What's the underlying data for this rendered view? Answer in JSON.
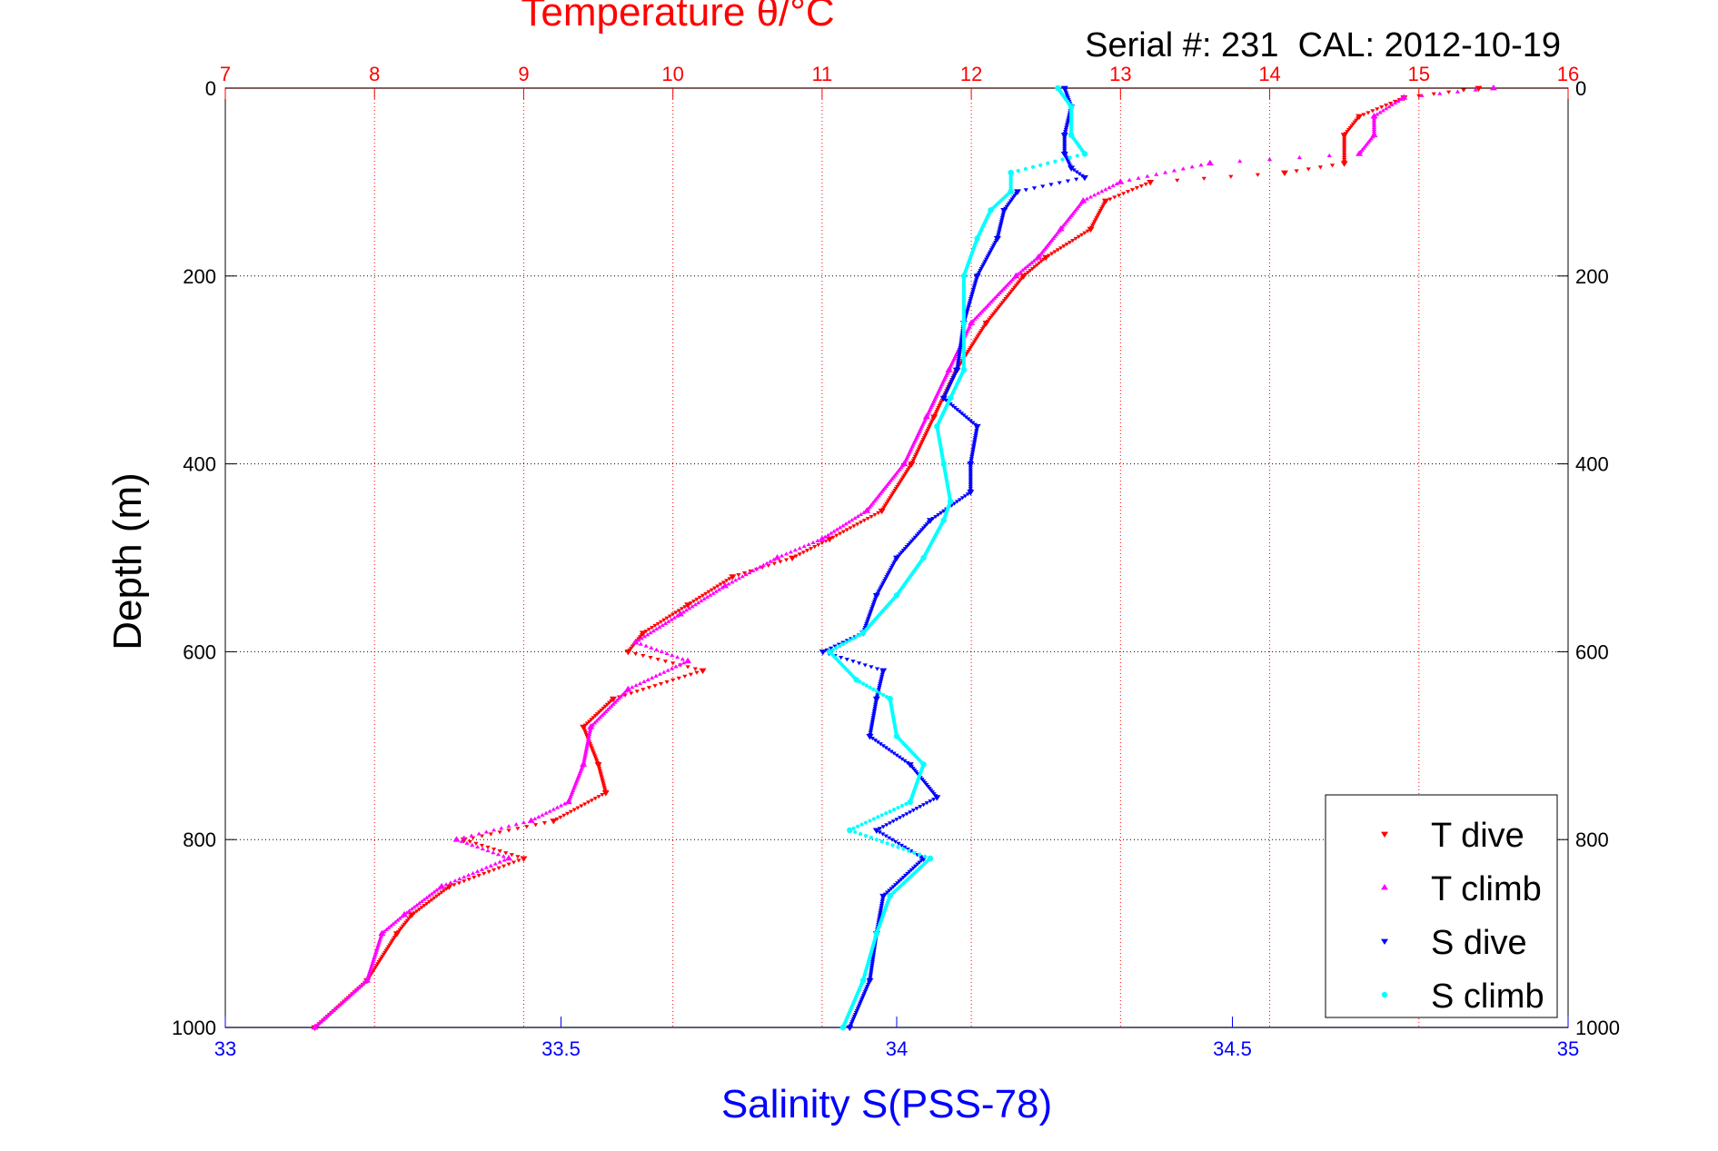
{
  "chart_data": {
    "type": "scatter",
    "title": "Temperature θ/°C",
    "subtitle": "Serial #: 231  CAL: 2012-10-19",
    "xlabel": "Salinity S(PSS-78)",
    "ylabel": "Depth (m)",
    "x_bottom": {
      "label": "Salinity S(PSS-78)",
      "lim": [
        33,
        35
      ],
      "ticks": [
        33,
        33.5,
        34,
        34.5,
        35
      ],
      "tick_labels": [
        "33",
        "33.5",
        "34",
        "34.5",
        "35"
      ],
      "color": "#0000ff"
    },
    "x_top": {
      "label": "Temperature θ/°C",
      "lim": [
        7,
        16
      ],
      "ticks": [
        7,
        8,
        9,
        10,
        11,
        12,
        13,
        14,
        15,
        16
      ],
      "tick_labels": [
        "7",
        "8",
        "9",
        "10",
        "11",
        "12",
        "13",
        "14",
        "15",
        "16"
      ],
      "color": "#ff0000"
    },
    "y_left": {
      "lim": [
        0,
        1000
      ],
      "reversed": true,
      "ticks": [
        0,
        200,
        400,
        600,
        800,
        1000
      ],
      "tick_labels": [
        "0",
        "200",
        "400",
        "600",
        "800",
        "1000"
      ]
    },
    "y_right": {
      "lim": [
        0,
        1000
      ],
      "reversed": true,
      "ticks": [
        0,
        200,
        400,
        600,
        800,
        1000
      ],
      "tick_labels": [
        "0",
        "200",
        "400",
        "600",
        "800",
        "1000"
      ]
    },
    "grid": true,
    "legend_position": "bottom-right",
    "series": [
      {
        "name": "T dive",
        "axis": "temperature",
        "color": "#ff0000",
        "marker": "triangle-down",
        "depth": [
          0,
          10,
          30,
          50,
          80,
          90,
          100,
          120,
          150,
          180,
          200,
          250,
          300,
          350,
          400,
          450,
          480,
          500,
          520,
          550,
          580,
          600,
          620,
          650,
          680,
          720,
          750,
          780,
          800,
          820,
          850,
          880,
          900,
          950,
          1000
        ],
        "value": [
          15.4,
          14.9,
          14.6,
          14.5,
          14.5,
          14.1,
          13.2,
          12.9,
          12.8,
          12.5,
          12.35,
          12.1,
          11.9,
          11.75,
          11.6,
          11.4,
          11.05,
          10.8,
          10.4,
          10.1,
          9.8,
          9.7,
          10.2,
          9.6,
          9.4,
          9.5,
          9.55,
          9.2,
          8.6,
          9.0,
          8.5,
          8.25,
          8.15,
          7.95,
          7.6
        ]
      },
      {
        "name": "T climb",
        "axis": "temperature",
        "color": "#ff00ff",
        "marker": "triangle-up",
        "depth": [
          0,
          10,
          30,
          50,
          70,
          80,
          100,
          120,
          150,
          180,
          200,
          250,
          300,
          350,
          400,
          450,
          480,
          500,
          530,
          560,
          590,
          610,
          640,
          680,
          720,
          760,
          780,
          800,
          820,
          850,
          880,
          900,
          950,
          1000
        ],
        "value": [
          15.5,
          14.9,
          14.7,
          14.7,
          14.6,
          13.6,
          13.0,
          12.75,
          12.6,
          12.45,
          12.3,
          12.0,
          11.85,
          11.7,
          11.55,
          11.3,
          11.0,
          10.7,
          10.35,
          10.05,
          9.75,
          10.1,
          9.7,
          9.45,
          9.4,
          9.3,
          9.05,
          8.55,
          8.9,
          8.45,
          8.2,
          8.05,
          7.95,
          7.6
        ]
      },
      {
        "name": "S dive",
        "axis": "salinity",
        "color": "#0000ff",
        "marker": "triangle-down",
        "depth": [
          0,
          20,
          50,
          70,
          85,
          95,
          110,
          130,
          160,
          200,
          250,
          300,
          330,
          360,
          400,
          430,
          460,
          500,
          540,
          580,
          600,
          620,
          650,
          690,
          720,
          755,
          790,
          820,
          860,
          900,
          950,
          1000
        ],
        "value": [
          34.25,
          34.26,
          34.25,
          34.25,
          34.26,
          34.28,
          34.18,
          34.16,
          34.15,
          34.12,
          34.1,
          34.09,
          34.07,
          34.12,
          34.11,
          34.11,
          34.05,
          34.0,
          33.97,
          33.95,
          33.89,
          33.98,
          33.97,
          33.96,
          34.02,
          34.06,
          33.97,
          34.04,
          33.98,
          33.97,
          33.96,
          33.93
        ]
      },
      {
        "name": "S climb",
        "axis": "salinity",
        "color": "#00ffff",
        "marker": "dot",
        "depth": [
          0,
          20,
          50,
          70,
          90,
          110,
          130,
          160,
          200,
          250,
          300,
          330,
          360,
          400,
          440,
          460,
          500,
          540,
          580,
          600,
          630,
          650,
          690,
          720,
          760,
          790,
          820,
          860,
          900,
          950,
          1000
        ],
        "value": [
          34.24,
          34.26,
          34.26,
          34.28,
          34.17,
          34.17,
          34.14,
          34.12,
          34.1,
          34.1,
          34.1,
          34.08,
          34.06,
          34.07,
          34.08,
          34.07,
          34.04,
          34.0,
          33.95,
          33.9,
          33.94,
          33.99,
          34.0,
          34.04,
          34.02,
          33.93,
          34.05,
          33.99,
          33.97,
          33.95,
          33.92
        ]
      }
    ]
  }
}
